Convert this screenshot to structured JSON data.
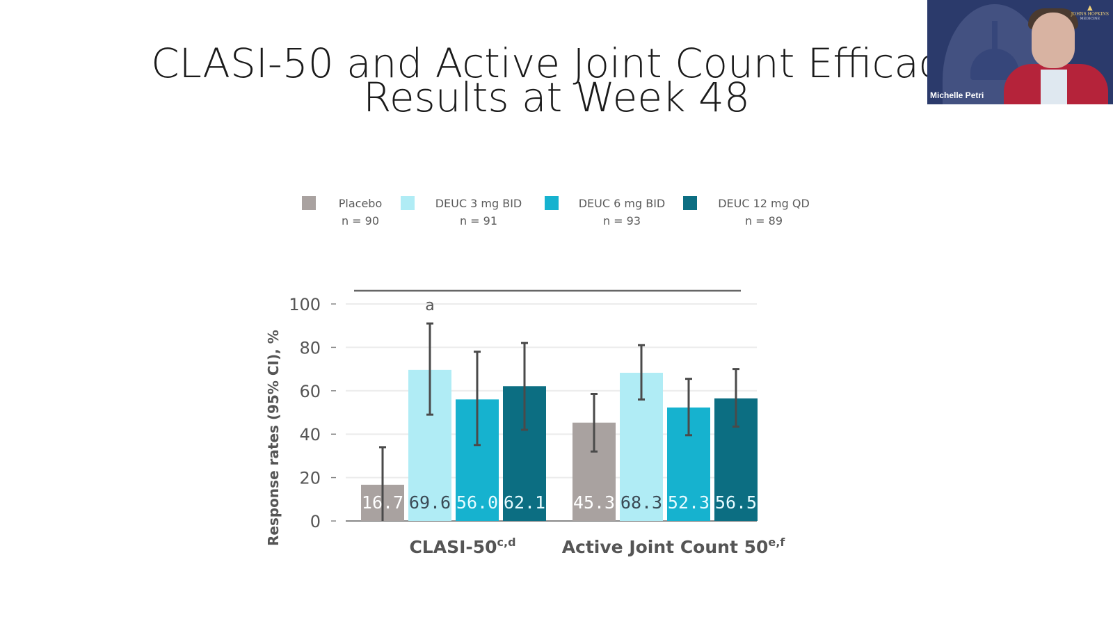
{
  "slide": {
    "title_line1": "CLASI-50 and Active Joint Count Efficac",
    "title_line2": "Results at Week 48"
  },
  "video_tile": {
    "participant_name": "Michelle Petri",
    "logo_text": "JOHNS HOPKINS",
    "logo_caption": "MEDICINE"
  },
  "chart_data": {
    "type": "bar",
    "title": "",
    "xlabel": "",
    "ylabel": "Response rates (95% CI), %",
    "ylim": [
      0,
      100
    ],
    "yticks": [
      0,
      20,
      40,
      60,
      80,
      100
    ],
    "grid": true,
    "legend_position": "top",
    "categories": [
      {
        "label": "CLASI-50",
        "superscript": "c,d"
      },
      {
        "label": "Active Joint Count 50",
        "superscript": "e,f"
      }
    ],
    "series": [
      {
        "name": "Placebo",
        "n_label": "n = 90",
        "color": "#a9a2a0",
        "value_color": "#ffffff",
        "values": [
          16.7,
          45.3
        ],
        "ci_low": [
          0,
          32
        ],
        "ci_high": [
          34,
          58.5
        ]
      },
      {
        "name": "DEUC 3 mg BID",
        "n_label": "n = 91",
        "color": "#b0ecf5",
        "value_color": "#3b4a55",
        "values": [
          69.6,
          68.3
        ],
        "ci_low": [
          49,
          56
        ],
        "ci_high": [
          91,
          81
        ]
      },
      {
        "name": "DEUC 6 mg BID",
        "n_label": "n = 93",
        "color": "#16b2cf",
        "value_color": "#e6fbff",
        "values": [
          56.0,
          52.3
        ],
        "ci_low": [
          35,
          39.5
        ],
        "ci_high": [
          78,
          65.5
        ]
      },
      {
        "name": "DEUC 12 mg QD",
        "n_label": "n = 89",
        "color": "#0c6e82",
        "value_color": "#e6fbff",
        "values": [
          62.1,
          56.5
        ],
        "ci_low": [
          42,
          43.5
        ],
        "ci_high": [
          82,
          70
        ]
      }
    ],
    "value_labels": [
      [
        "16.7",
        "45.3"
      ],
      [
        "69.6",
        "68.3"
      ],
      [
        "56.0",
        "52.3"
      ],
      [
        "62.1",
        "56.5"
      ]
    ],
    "annotations": [
      {
        "text": "a",
        "category": 0,
        "series": 1
      }
    ],
    "significance_bar": true
  }
}
